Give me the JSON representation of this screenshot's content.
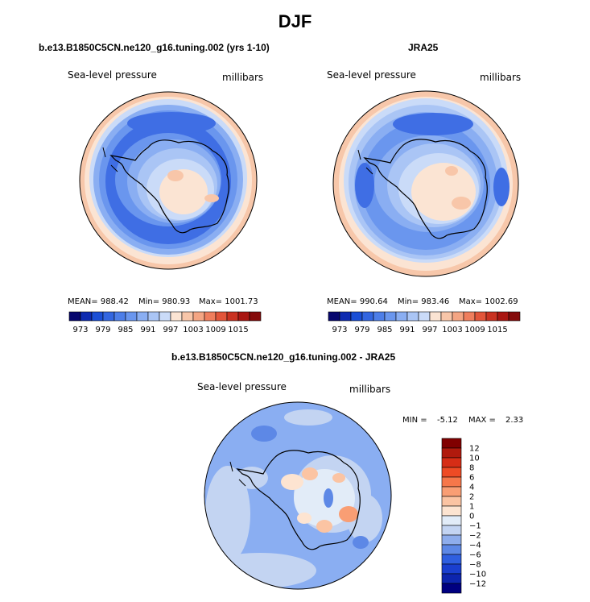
{
  "figure": {
    "title": "DJF",
    "panels": [
      {
        "title": "b.e13.B1850C5CN.ne120_g16.tuning.002 (yrs 1-10)",
        "variable": "Sea-level pressure",
        "units": "millibars",
        "stats": {
          "mean": "MEAN= 988.42",
          "min": "Min= 980.93",
          "max": "Max= 1001.73"
        }
      },
      {
        "title": "JRA25",
        "variable": "Sea-level pressure",
        "units": "millibars",
        "stats": {
          "mean": "MEAN= 990.64",
          "min": "Min= 983.46",
          "max": "Max= 1002.69"
        }
      },
      {
        "title": "b.e13.B1850C5CN.ne120_g16.tuning.002 - JRA25",
        "variable": "Sea-level pressure",
        "units": "millibars",
        "stats": {
          "min_label": "MIN =",
          "min_value": "-5.12",
          "max_label": "MAX =",
          "max_value": "2.33"
        }
      }
    ]
  },
  "colorbars": {
    "abs": {
      "ticks": [
        "973",
        "979",
        "985",
        "991",
        "997",
        "1003",
        "1009",
        "1015"
      ],
      "colors": [
        "#07076e",
        "#0e2bb0",
        "#1b4fd6",
        "#3366e0",
        "#4d7ee8",
        "#6a96ee",
        "#8aaef2",
        "#aac5f5",
        "#cadbf8",
        "#fbe4d3",
        "#f8c6a9",
        "#f4a583",
        "#ef7e5d",
        "#e2553a",
        "#c93221",
        "#a91612",
        "#850b0b"
      ]
    },
    "diff": {
      "ticks": [
        "12",
        "10",
        "8",
        "6",
        "4",
        "2",
        "1",
        "0",
        "−1",
        "−2",
        "−4",
        "−6",
        "−8",
        "−10",
        "−12"
      ],
      "colors": [
        "#800000",
        "#b01a0d",
        "#d62d16",
        "#ee4b25",
        "#f6774a",
        "#f99e74",
        "#fbc4a3",
        "#fde4d1",
        "#e2ecf8",
        "#c3d4f2",
        "#8eadec",
        "#5d88e6",
        "#2f5fe0",
        "#1a3fcf",
        "#0d25ae",
        "#000080"
      ]
    }
  }
}
